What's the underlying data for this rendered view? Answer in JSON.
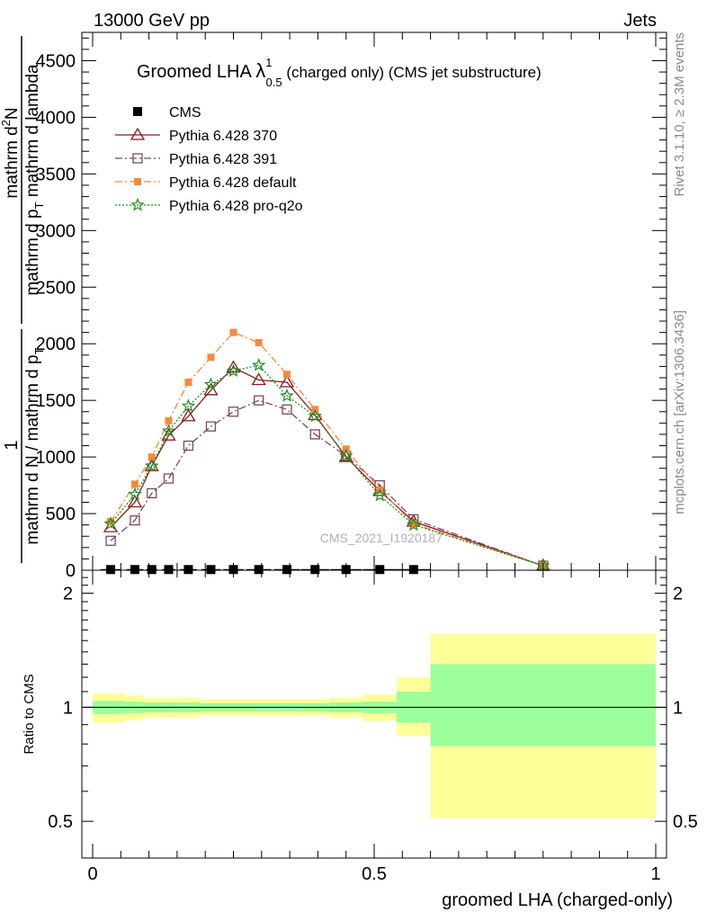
{
  "header": {
    "left": "13000 GeV pp",
    "right": "Jets"
  },
  "side_labels": {
    "rivet": "Rivet 3.1.10, ≥ 2.3M events",
    "mcplots": "mcplots.cern.ch [arXiv:1306.3436]"
  },
  "watermark": "CMS_2021_I1920187",
  "chart_data": [
    {
      "type": "line",
      "panel": "main",
      "title": {
        "prefix": "Groomed LHA ",
        "lambda": "λ",
        "sup": "1",
        "sub": "0.5",
        "suffix": " (charged only) (CMS jet substructure)"
      },
      "ylabel": "1 / mathrm d N / mathrm d p_T mathrm d^2N / mathrm d p_T mathrm d lambda",
      "ylabel_parts": {
        "numerator": "1",
        "denominator": "mathrm d N / mathrm d p",
        "denominator_sub": "T",
        "numerator2_top": "mathrm d",
        "numerator2_sup": "2",
        "numerator2_rest": "N",
        "denominator2": "mathrm d p",
        "denominator2_sub": "T",
        "denominator2_rest": " mathrm d lambda"
      },
      "xlim": [
        0,
        1
      ],
      "ylim": [
        0,
        4750
      ],
      "yticks": [
        0,
        500,
        1000,
        1500,
        2000,
        2500,
        3000,
        3500,
        4000,
        4500
      ],
      "ytick_labels": [
        "0",
        "500",
        "1000",
        "1500",
        "2000",
        "2500",
        "3000",
        "3500",
        "4000",
        "4500"
      ],
      "legend_position": "top-left",
      "series": [
        {
          "name": "CMS",
          "color": "#000000",
          "marker": "filled-square",
          "x": [
            0.032,
            0.075,
            0.105,
            0.135,
            0.17,
            0.21,
            0.25,
            0.295,
            0.345,
            0.395,
            0.45,
            0.51,
            0.57
          ],
          "y": [
            6,
            6,
            6,
            6,
            6,
            6,
            6,
            6,
            6,
            6,
            6,
            6,
            6
          ],
          "xerr": [
            0.018,
            0.015,
            0.01,
            0.012,
            0.015,
            0.017,
            0.018,
            0.022,
            0.023,
            0.025,
            0.028,
            0.03,
            0.03
          ]
        },
        {
          "name": "Pythia 6.428 370",
          "color": "#8b1a1a",
          "marker": "open-triangle",
          "line": "solid",
          "x": [
            0.032,
            0.075,
            0.105,
            0.135,
            0.17,
            0.21,
            0.25,
            0.295,
            0.345,
            0.395,
            0.45,
            0.51,
            0.57,
            0.8
          ],
          "y": [
            380,
            600,
            920,
            1190,
            1360,
            1590,
            1790,
            1680,
            1660,
            1370,
            1000,
            700,
            430,
            40
          ]
        },
        {
          "name": "Pythia 6.428 391",
          "color": "#7a4a5a",
          "marker": "open-square",
          "line": "dashdot",
          "x": [
            0.032,
            0.075,
            0.105,
            0.135,
            0.17,
            0.21,
            0.25,
            0.295,
            0.345,
            0.395,
            0.45,
            0.51,
            0.57,
            0.8
          ],
          "y": [
            260,
            440,
            680,
            810,
            1100,
            1270,
            1400,
            1500,
            1420,
            1200,
            1010,
            750,
            450,
            40
          ]
        },
        {
          "name": "Pythia 6.428 default",
          "color": "#f58a3a",
          "marker": "filled-square-small",
          "line": "dashdot",
          "x": [
            0.032,
            0.075,
            0.105,
            0.135,
            0.17,
            0.21,
            0.25,
            0.295,
            0.345,
            0.395,
            0.45,
            0.51,
            0.57,
            0.8
          ],
          "y": [
            430,
            760,
            1000,
            1320,
            1660,
            1880,
            2100,
            2010,
            1730,
            1420,
            1070,
            710,
            410,
            40
          ]
        },
        {
          "name": "Pythia 6.428 pro-q2o",
          "color": "#1f8c1f",
          "marker": "open-star",
          "line": "dotted",
          "x": [
            0.032,
            0.075,
            0.105,
            0.135,
            0.17,
            0.21,
            0.25,
            0.295,
            0.345,
            0.395,
            0.45,
            0.51,
            0.57,
            0.8
          ],
          "y": [
            410,
            670,
            920,
            1230,
            1450,
            1640,
            1760,
            1810,
            1540,
            1360,
            1010,
            660,
            400,
            40
          ]
        }
      ]
    },
    {
      "type": "area",
      "panel": "ratio",
      "ylabel": "Ratio to CMS",
      "xlabel": "groomed LHA (charged-only)",
      "xlim": [
        0,
        1
      ],
      "ylim": [
        0.4,
        2.3
      ],
      "xticks": [
        0,
        0.5,
        1
      ],
      "xtick_labels": [
        "0",
        "0.5",
        "1"
      ],
      "yticks": [
        0.5,
        1,
        2
      ],
      "ytick_labels": [
        "0.5",
        "1",
        "2"
      ],
      "bins": [
        {
          "xlo": 0.0,
          "xhi": 0.057,
          "stat": [
            0.96,
            1.04
          ],
          "total": [
            0.91,
            1.09
          ]
        },
        {
          "xlo": 0.057,
          "xhi": 0.09,
          "stat": [
            0.965,
            1.035
          ],
          "total": [
            0.925,
            1.075
          ]
        },
        {
          "xlo": 0.09,
          "xhi": 0.12,
          "stat": [
            0.97,
            1.03
          ],
          "total": [
            0.94,
            1.06
          ]
        },
        {
          "xlo": 0.12,
          "xhi": 0.15,
          "stat": [
            0.97,
            1.03
          ],
          "total": [
            0.94,
            1.06
          ]
        },
        {
          "xlo": 0.15,
          "xhi": 0.19,
          "stat": [
            0.97,
            1.03
          ],
          "total": [
            0.94,
            1.06
          ]
        },
        {
          "xlo": 0.19,
          "xhi": 0.23,
          "stat": [
            0.975,
            1.025
          ],
          "total": [
            0.95,
            1.05
          ]
        },
        {
          "xlo": 0.23,
          "xhi": 0.27,
          "stat": [
            0.975,
            1.025
          ],
          "total": [
            0.95,
            1.05
          ]
        },
        {
          "xlo": 0.27,
          "xhi": 0.32,
          "stat": [
            0.975,
            1.025
          ],
          "total": [
            0.95,
            1.05
          ]
        },
        {
          "xlo": 0.32,
          "xhi": 0.37,
          "stat": [
            0.975,
            1.025
          ],
          "total": [
            0.95,
            1.05
          ]
        },
        {
          "xlo": 0.37,
          "xhi": 0.42,
          "stat": [
            0.975,
            1.025
          ],
          "total": [
            0.95,
            1.05
          ]
        },
        {
          "xlo": 0.42,
          "xhi": 0.48,
          "stat": [
            0.97,
            1.03
          ],
          "total": [
            0.94,
            1.06
          ]
        },
        {
          "xlo": 0.48,
          "xhi": 0.54,
          "stat": [
            0.965,
            1.035
          ],
          "total": [
            0.92,
            1.08
          ]
        },
        {
          "xlo": 0.54,
          "xhi": 0.6,
          "stat": [
            0.91,
            1.1
          ],
          "total": [
            0.84,
            1.2
          ]
        },
        {
          "xlo": 0.6,
          "xhi": 1.0,
          "stat": [
            0.79,
            1.3
          ],
          "total": [
            0.51,
            1.56
          ]
        }
      ],
      "reference_line": 1,
      "colors": {
        "stat": "#9cff9c",
        "total": "#ffff99"
      }
    }
  ]
}
